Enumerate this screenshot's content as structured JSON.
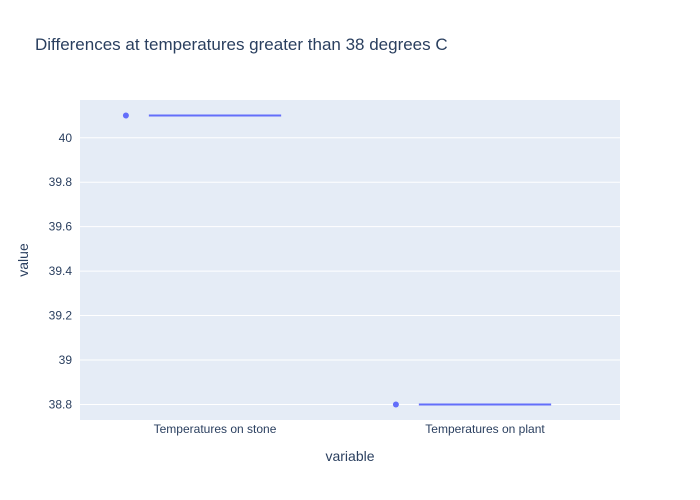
{
  "chart_data": {
    "type": "box",
    "title": "Differences at temperatures greater than 38 degrees C",
    "xlabel": "variable",
    "ylabel": "value",
    "categories": [
      "Temperatures on stone",
      "Temperatures on plant"
    ],
    "values": [
      40.1,
      38.8
    ],
    "ylim": [
      38.73,
      40.17
    ],
    "yticks": [
      38.8,
      39,
      39.2,
      39.4,
      39.6,
      39.8,
      40
    ],
    "ytick_labels": [
      "38.8",
      "39",
      "39.2",
      "39.4",
      "39.6",
      "39.8",
      "40"
    ],
    "grid": true,
    "colors": {
      "plot_bg": "#e5ecf6",
      "grid": "#ffffff",
      "series": "#636efa",
      "text": "#2a3f5f"
    }
  }
}
